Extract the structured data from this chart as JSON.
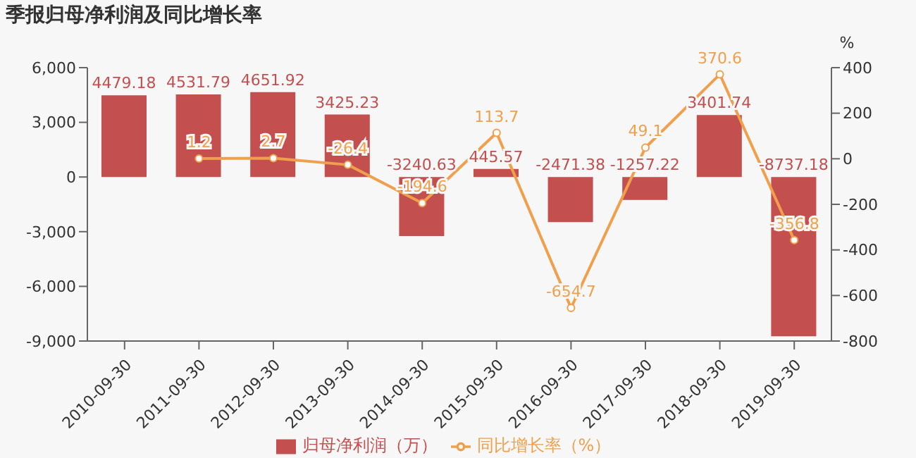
{
  "chart_data": {
    "type": "bar",
    "title": "季报归母净利润及同比增长率",
    "categories": [
      "2010-09-30",
      "2011-09-30",
      "2012-09-30",
      "2013-09-30",
      "2014-09-30",
      "2015-09-30",
      "2016-09-30",
      "2017-09-30",
      "2018-09-30",
      "2019-09-30"
    ],
    "series": [
      {
        "name": "归母净利润（万）",
        "color": "#c44f4f",
        "values": [
          4479.18,
          4531.79,
          4651.92,
          3425.23,
          -3240.63,
          445.57,
          -2471.38,
          -1257.22,
          3401.74,
          -8737.18
        ]
      },
      {
        "name": "同比增长率（%）",
        "type": "line",
        "axis": "y2",
        "color": "#f0a04c",
        "values": [
          null,
          1.2,
          2.7,
          -26.4,
          -194.6,
          113.7,
          -654.7,
          49.1,
          370.6,
          -356.8
        ]
      }
    ],
    "ylim": [
      -9000,
      6000
    ],
    "yticks": [
      {
        "value": -9000,
        "label": "-9,000"
      },
      {
        "value": -6000,
        "label": "-6,000"
      },
      {
        "value": -3000,
        "label": "-3,000"
      },
      0,
      {
        "value": 3000,
        "label": "3,000"
      },
      {
        "value": 6000,
        "label": "6,000"
      }
    ],
    "y2label": "%",
    "y2lim": [
      -800,
      400
    ],
    "y2ticks": [
      -800,
      -600,
      -400,
      -200,
      0,
      200,
      400
    ],
    "data_labels": true,
    "grid": false,
    "legend": "bottom",
    "marker": "circle",
    "line_style": "solid"
  }
}
